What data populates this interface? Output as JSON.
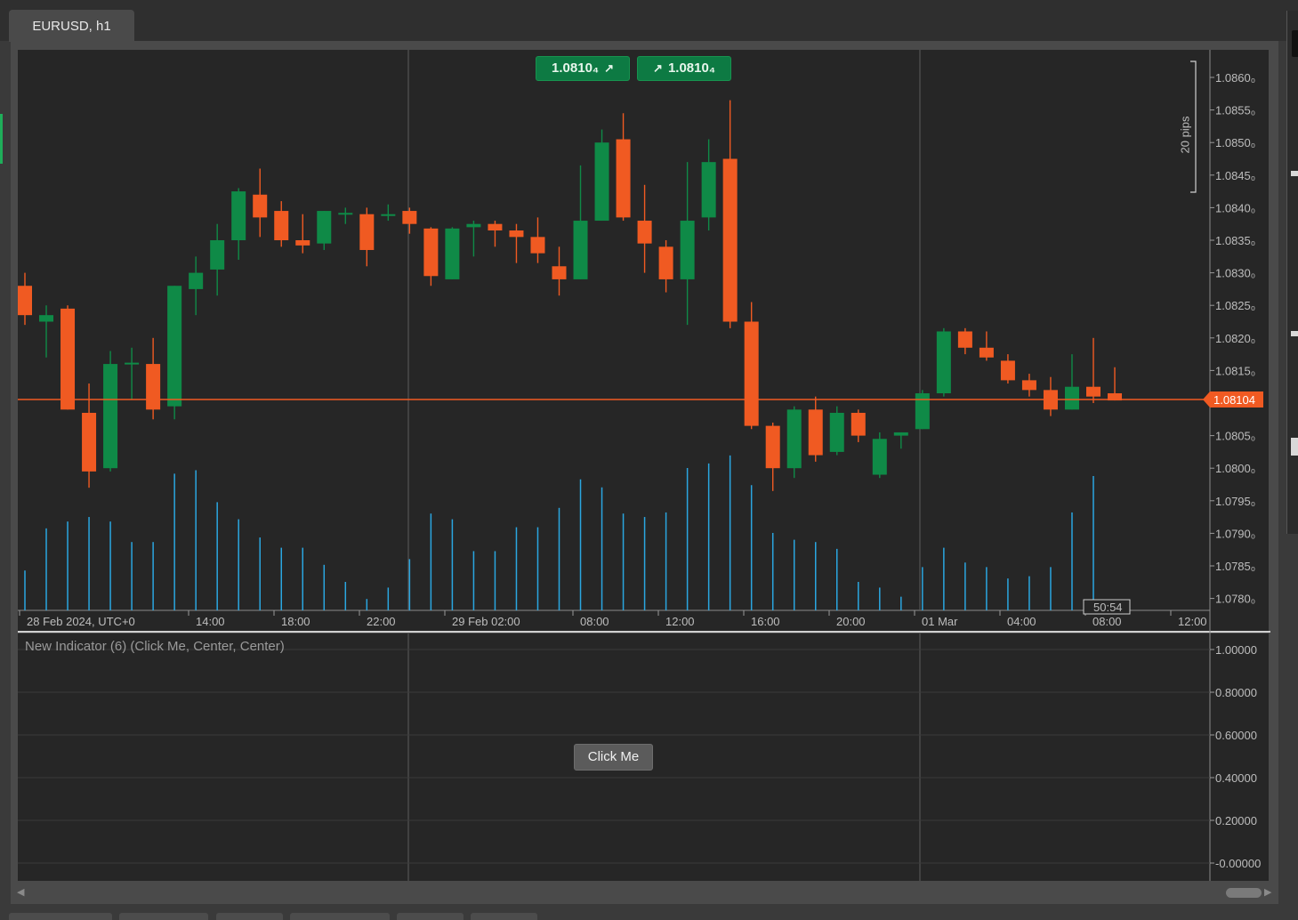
{
  "window": {
    "tab_title": "EURUSD, h1"
  },
  "trade_buttons": {
    "sell": {
      "price": "1.0810₄",
      "arrow": "↗"
    },
    "buy": {
      "price": "1.0810₄",
      "arrow": "↗"
    }
  },
  "measure": {
    "label": "20 pips"
  },
  "price_axis": {
    "ticks": [
      "1.0860₀",
      "1.0855₀",
      "1.0850₀",
      "1.0845₀",
      "1.0840₀",
      "1.0835₀",
      "1.0830₀",
      "1.0825₀",
      "1.0820₀",
      "1.0815₀",
      "1.0805₀",
      "1.0800₀",
      "1.0795₀",
      "1.0790₀",
      "1.0785₀",
      "1.0780₀"
    ],
    "current_price_label": "1.08104"
  },
  "time_axis": {
    "ticks": [
      "28 Feb 2024, UTC+0",
      "14:00",
      "18:00",
      "22:00",
      "29 Feb 02:00",
      "08:00",
      "12:00",
      "16:00",
      "20:00",
      "01 Mar",
      "04:00",
      "08:00",
      "12:00"
    ],
    "countdown": "50:54"
  },
  "indicator": {
    "label": "New Indicator (6) (Click Me, Center, Center)",
    "button_label": "Click Me",
    "axis_ticks": [
      "1.00000",
      "0.80000",
      "0.60000",
      "0.40000",
      "0.20000",
      "-0.00000"
    ]
  },
  "colors": {
    "bull": "#0f8a47",
    "bear": "#f05a22",
    "volume": "#2aa6e0",
    "price_line": "#f05a22",
    "background": "#262626"
  },
  "chart_data": {
    "type": "candlestick",
    "symbol": "EURUSD",
    "timeframe": "h1",
    "ylim": [
      1.0778,
      1.0863
    ],
    "series": [
      {
        "o": 1.0828,
        "h": 1.083,
        "l": 1.0822,
        "c": 1.08235,
        "v": 0.35
      },
      {
        "o": 1.08225,
        "h": 1.0825,
        "l": 1.0817,
        "c": 1.08235,
        "v": 0.72
      },
      {
        "o": 1.08245,
        "h": 1.0825,
        "l": 1.0809,
        "c": 1.0809,
        "v": 0.78
      },
      {
        "o": 1.08085,
        "h": 1.0813,
        "l": 1.0797,
        "c": 1.07995,
        "v": 0.82
      },
      {
        "o": 1.08,
        "h": 1.0818,
        "l": 1.07995,
        "c": 1.0816,
        "v": 0.78
      },
      {
        "o": 1.0816,
        "h": 1.08185,
        "l": 1.08105,
        "c": 1.08162,
        "v": 0.6
      },
      {
        "o": 1.0816,
        "h": 1.082,
        "l": 1.08075,
        "c": 1.0809,
        "v": 0.6
      },
      {
        "o": 1.08095,
        "h": 1.0828,
        "l": 1.08075,
        "c": 1.0828,
        "v": 1.2
      },
      {
        "o": 1.08275,
        "h": 1.08325,
        "l": 1.08235,
        "c": 1.083,
        "v": 1.23
      },
      {
        "o": 1.08305,
        "h": 1.08375,
        "l": 1.08265,
        "c": 1.0835,
        "v": 0.95
      },
      {
        "o": 1.0835,
        "h": 1.0843,
        "l": 1.0832,
        "c": 1.08425,
        "v": 0.8
      },
      {
        "o": 1.0842,
        "h": 1.0846,
        "l": 1.08355,
        "c": 1.08385,
        "v": 0.64
      },
      {
        "o": 1.08395,
        "h": 1.0841,
        "l": 1.0834,
        "c": 1.0835,
        "v": 0.55
      },
      {
        "o": 1.0835,
        "h": 1.0839,
        "l": 1.0833,
        "c": 1.08342,
        "v": 0.55
      },
      {
        "o": 1.08345,
        "h": 1.08395,
        "l": 1.08335,
        "c": 1.08395,
        "v": 0.4
      },
      {
        "o": 1.0839,
        "h": 1.084,
        "l": 1.08375,
        "c": 1.08392,
        "v": 0.25
      },
      {
        "o": 1.0839,
        "h": 1.084,
        "l": 1.0831,
        "c": 1.08335,
        "v": 0.1
      },
      {
        "o": 1.0839,
        "h": 1.08405,
        "l": 1.0838,
        "c": 1.0839,
        "v": 0.2
      },
      {
        "o": 1.08395,
        "h": 1.084,
        "l": 1.0836,
        "c": 1.08375,
        "v": 0.45
      },
      {
        "o": 1.08368,
        "h": 1.0837,
        "l": 1.0828,
        "c": 1.08295,
        "v": 0.85
      },
      {
        "o": 1.0829,
        "h": 1.0837,
        "l": 1.0829,
        "c": 1.08368,
        "v": 0.8
      },
      {
        "o": 1.0837,
        "h": 1.0838,
        "l": 1.08325,
        "c": 1.08375,
        "v": 0.52
      },
      {
        "o": 1.08375,
        "h": 1.0838,
        "l": 1.0834,
        "c": 1.08365,
        "v": 0.52
      },
      {
        "o": 1.08365,
        "h": 1.08375,
        "l": 1.08315,
        "c": 1.08355,
        "v": 0.73
      },
      {
        "o": 1.08355,
        "h": 1.08385,
        "l": 1.08315,
        "c": 1.0833,
        "v": 0.73
      },
      {
        "o": 1.0831,
        "h": 1.0834,
        "l": 1.08265,
        "c": 1.0829,
        "v": 0.9
      },
      {
        "o": 1.0829,
        "h": 1.08465,
        "l": 1.0829,
        "c": 1.0838,
        "v": 1.15
      },
      {
        "o": 1.0838,
        "h": 1.0852,
        "l": 1.0838,
        "c": 1.085,
        "v": 1.08
      },
      {
        "o": 1.08505,
        "h": 1.08545,
        "l": 1.0838,
        "c": 1.08385,
        "v": 0.85
      },
      {
        "o": 1.0838,
        "h": 1.08435,
        "l": 1.083,
        "c": 1.08345,
        "v": 0.82
      },
      {
        "o": 1.0834,
        "h": 1.0835,
        "l": 1.0827,
        "c": 1.0829,
        "v": 0.86
      },
      {
        "o": 1.0829,
        "h": 1.0847,
        "l": 1.0822,
        "c": 1.0838,
        "v": 1.25
      },
      {
        "o": 1.08385,
        "h": 1.08505,
        "l": 1.08365,
        "c": 1.0847,
        "v": 1.29
      },
      {
        "o": 1.08475,
        "h": 1.08565,
        "l": 1.08215,
        "c": 1.08225,
        "v": 1.36
      },
      {
        "o": 1.08225,
        "h": 1.08255,
        "l": 1.0806,
        "c": 1.08065,
        "v": 1.1
      },
      {
        "o": 1.08065,
        "h": 1.0807,
        "l": 1.07965,
        "c": 1.08,
        "v": 0.68
      },
      {
        "o": 1.08,
        "h": 1.08095,
        "l": 1.07985,
        "c": 1.0809,
        "v": 0.62
      },
      {
        "o": 1.0809,
        "h": 1.0811,
        "l": 1.0801,
        "c": 1.0802,
        "v": 0.6
      },
      {
        "o": 1.08025,
        "h": 1.08095,
        "l": 1.0802,
        "c": 1.08085,
        "v": 0.54
      },
      {
        "o": 1.08085,
        "h": 1.0809,
        "l": 1.0804,
        "c": 1.0805,
        "v": 0.25
      },
      {
        "o": 1.0799,
        "h": 1.08055,
        "l": 1.07985,
        "c": 1.08045,
        "v": 0.2
      },
      {
        "o": 1.0805,
        "h": 1.08055,
        "l": 1.0803,
        "c": 1.08055,
        "v": 0.12
      },
      {
        "o": 1.0806,
        "h": 1.0812,
        "l": 1.0806,
        "c": 1.08115,
        "v": 0.38
      },
      {
        "o": 1.08115,
        "h": 1.08215,
        "l": 1.0811,
        "c": 1.0821,
        "v": 0.55
      },
      {
        "o": 1.0821,
        "h": 1.08215,
        "l": 1.08175,
        "c": 1.08185,
        "v": 0.42
      },
      {
        "o": 1.08185,
        "h": 1.0821,
        "l": 1.08165,
        "c": 1.0817,
        "v": 0.38
      },
      {
        "o": 1.08165,
        "h": 1.08175,
        "l": 1.0813,
        "c": 1.08135,
        "v": 0.28
      },
      {
        "o": 1.08135,
        "h": 1.08145,
        "l": 1.0811,
        "c": 1.0812,
        "v": 0.3
      },
      {
        "o": 1.0812,
        "h": 1.0814,
        "l": 1.0808,
        "c": 1.0809,
        "v": 0.38
      },
      {
        "o": 1.0809,
        "h": 1.08175,
        "l": 1.0809,
        "c": 1.08125,
        "v": 0.86
      },
      {
        "o": 1.08125,
        "h": 1.082,
        "l": 1.081,
        "c": 1.0811,
        "v": 1.18
      },
      {
        "o": 1.08115,
        "h": 1.08155,
        "l": 1.08104,
        "c": 1.08104,
        "v": 0.0
      }
    ]
  }
}
